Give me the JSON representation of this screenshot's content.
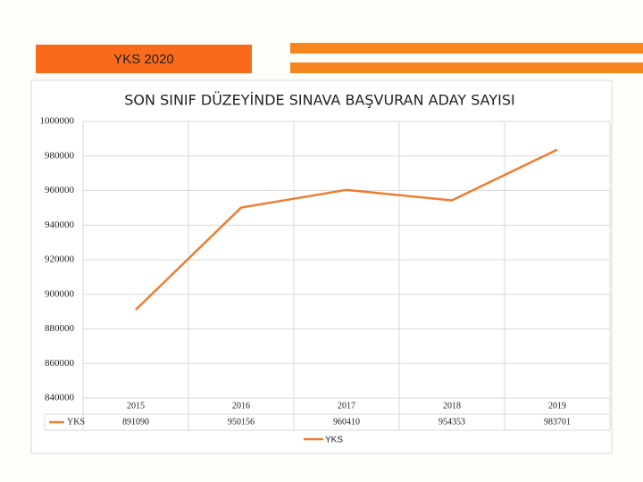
{
  "header": {
    "title": "YKS 2020"
  },
  "chart_data": {
    "type": "line",
    "title": "SON SINIF DÜZEYİNDE SINAVA BAŞVURAN ADAY SAYISI",
    "categories": [
      "2015",
      "2016",
      "2017",
      "2018",
      "2019"
    ],
    "series": [
      {
        "name": "YKS",
        "color": "#ed7d31",
        "values": [
          891090,
          950156,
          960410,
          954353,
          983701
        ]
      }
    ],
    "ylim": [
      840000,
      1000000
    ],
    "yticks": [
      840000,
      860000,
      880000,
      900000,
      920000,
      940000,
      960000,
      980000,
      1000000
    ],
    "grid": true,
    "data_table": true,
    "legend": "bottom"
  }
}
